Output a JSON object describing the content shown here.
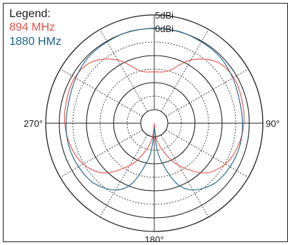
{
  "chart_data": {
    "type": "polar-line",
    "legend": {
      "title": "Legend:",
      "position": "top-left"
    },
    "radial_axis": {
      "unit": "dBi",
      "min": -35,
      "max": 5,
      "rings": [
        -35,
        -30,
        -25,
        -20,
        -15,
        -10,
        -5,
        0,
        5
      ],
      "labeled_rings": [
        {
          "value": 5,
          "label": "5dBi"
        },
        {
          "value": 0,
          "label": "0dBi"
        }
      ]
    },
    "angular_axis": {
      "zero_at": "top",
      "direction": "clockwise",
      "spoke_step_deg": 30,
      "tick_labels": [
        {
          "angle": 90,
          "label": "90°"
        },
        {
          "angle": 180,
          "label": "180°"
        },
        {
          "angle": 270,
          "label": "270°"
        }
      ]
    },
    "grid": true,
    "series": [
      {
        "name": "894 MHz",
        "color": "#e8524a",
        "angles": [
          0,
          15,
          30,
          45,
          60,
          75,
          90,
          105,
          120,
          135,
          150,
          160,
          170,
          175,
          180,
          185,
          190,
          200,
          210,
          225,
          240,
          255,
          270,
          285,
          300,
          315,
          330,
          345,
          360
        ],
        "values": [
          -16,
          -15,
          -8,
          -2.8,
          -1.2,
          -1.6,
          -2,
          -3,
          -4.8,
          -9,
          -17,
          -23,
          -28,
          -32,
          -35,
          -32,
          -28,
          -23,
          -17,
          -9,
          -4.8,
          -3,
          -2,
          -1.6,
          -1.2,
          -2.8,
          -8,
          -15,
          -16
        ]
      },
      {
        "name": "1880 HMz",
        "color": "#1e6487",
        "angles": [
          0,
          15,
          30,
          45,
          60,
          75,
          90,
          105,
          120,
          135,
          150,
          160,
          170,
          175,
          180,
          185,
          190,
          200,
          210,
          225,
          240,
          255,
          270,
          285,
          300,
          315,
          330,
          345,
          360
        ],
        "values": [
          0.2,
          0.1,
          -0.3,
          -0.6,
          -1.6,
          -2.5,
          -2.5,
          -2.4,
          -2.8,
          -3.6,
          -6.5,
          -11.5,
          -21,
          -27,
          -33,
          -27,
          -21,
          -11.5,
          -6.5,
          -3.6,
          -2.8,
          -2.4,
          -2.5,
          -2.5,
          -1.6,
          -0.6,
          -0.3,
          0.1,
          0.2
        ]
      }
    ]
  }
}
